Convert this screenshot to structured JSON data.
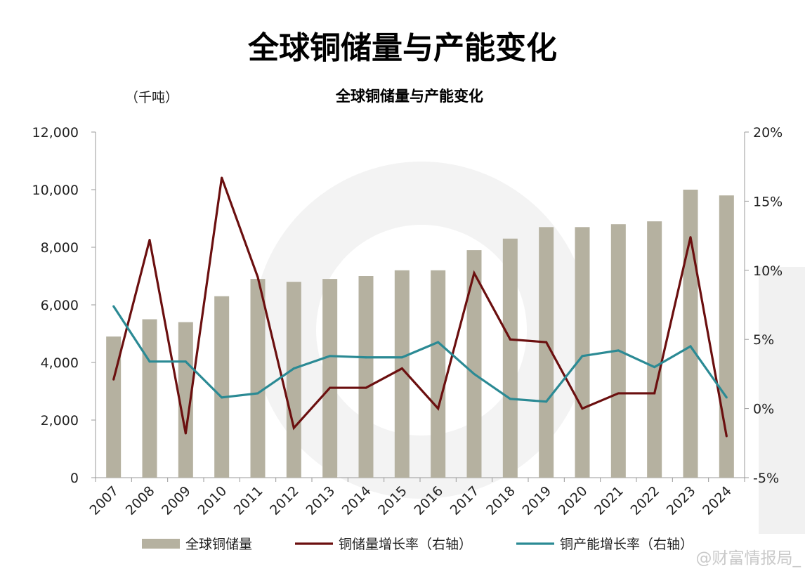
{
  "header": {
    "title": "全球铜储量与产能变化",
    "subtitle": "全球铜储量与产能变化",
    "unit_label": "（千吨）"
  },
  "watermark": {
    "text": "@财富情报局_"
  },
  "chart_data": {
    "type": "bar",
    "categories": [
      "2007",
      "2008",
      "2009",
      "2010",
      "2011",
      "2012",
      "2013",
      "2014",
      "2015",
      "2016",
      "2017",
      "2018",
      "2019",
      "2020",
      "2021",
      "2022",
      "2023",
      "2024"
    ],
    "series": [
      {
        "name": "全球铜储量",
        "type": "bar",
        "axis": "left",
        "color": "#b5b1a0",
        "values": [
          4900,
          5500,
          5400,
          6300,
          6900,
          6800,
          6900,
          7000,
          7200,
          7200,
          7900,
          8300,
          8700,
          8700,
          8800,
          8900,
          10000,
          9800
        ]
      },
      {
        "name": "铜储量增长率（右轴）",
        "type": "line",
        "axis": "right",
        "color": "#6b0f0f",
        "values": [
          2.1,
          12.2,
          -1.8,
          16.7,
          9.5,
          -1.4,
          1.5,
          1.5,
          2.9,
          0.0,
          9.8,
          5.0,
          4.8,
          0.0,
          1.1,
          1.1,
          12.4,
          -2.0
        ]
      },
      {
        "name": "铜产能增长率（右轴）",
        "type": "line",
        "axis": "right",
        "color": "#2b8a94",
        "values": [
          7.4,
          3.4,
          3.4,
          0.8,
          1.1,
          2.9,
          3.8,
          3.7,
          3.7,
          4.8,
          2.5,
          0.7,
          0.5,
          3.8,
          4.2,
          3.0,
          4.5,
          0.8
        ]
      }
    ],
    "left_axis": {
      "ylim": [
        0,
        12000
      ],
      "ticks": [
        "0",
        "2,000",
        "4,000",
        "6,000",
        "8,000",
        "10,000",
        "12,000"
      ]
    },
    "right_axis": {
      "ylim": [
        -5,
        20
      ],
      "ticks": [
        "-5%",
        "0%",
        "5%",
        "10%",
        "15%",
        "20%"
      ]
    },
    "grid": false,
    "legend_position": "bottom"
  }
}
